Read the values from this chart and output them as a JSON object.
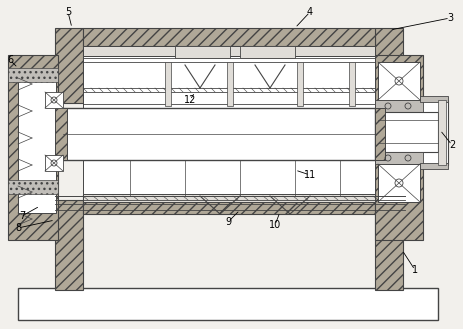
{
  "bg_color": "#f2f0ec",
  "lc": "#444444",
  "hatch_fc": "#b0a898",
  "white": "#ffffff",
  "light_gray": "#e0ddd8",
  "mid_gray": "#c0bdb8",
  "dark_gray": "#909090",
  "figsize": [
    4.63,
    3.29
  ],
  "dpi": 100
}
